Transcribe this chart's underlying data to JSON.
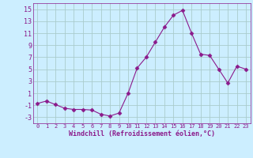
{
  "x": [
    0,
    1,
    2,
    3,
    4,
    5,
    6,
    7,
    8,
    9,
    10,
    11,
    12,
    13,
    14,
    15,
    16,
    17,
    18,
    19,
    20,
    21,
    22,
    23
  ],
  "y": [
    -0.7,
    -0.3,
    -0.9,
    -1.5,
    -1.7,
    -1.7,
    -1.8,
    -2.5,
    -2.8,
    -2.3,
    1.0,
    5.2,
    7.0,
    9.5,
    12.0,
    14.0,
    14.8,
    11.0,
    7.5,
    7.3,
    5.0,
    2.7,
    5.5,
    5.0
  ],
  "line_color": "#8b1a8b",
  "marker": "D",
  "marker_size": 2.5,
  "bg_color": "#cceeff",
  "grid_color": "#aacccc",
  "xlabel": "Windchill (Refroidissement éolien,°C)",
  "ylabel": "",
  "ylim": [
    -4,
    16
  ],
  "yticks": [
    -3,
    -1,
    1,
    3,
    5,
    7,
    9,
    11,
    13,
    15
  ],
  "xticks": [
    0,
    1,
    2,
    3,
    4,
    5,
    6,
    7,
    8,
    9,
    10,
    11,
    12,
    13,
    14,
    15,
    16,
    17,
    18,
    19,
    20,
    21,
    22,
    23
  ],
  "tick_color": "#8b1a8b",
  "label_color": "#8b1a8b",
  "spine_color": "#8b1a8b",
  "xlim": [
    -0.5,
    23.5
  ]
}
